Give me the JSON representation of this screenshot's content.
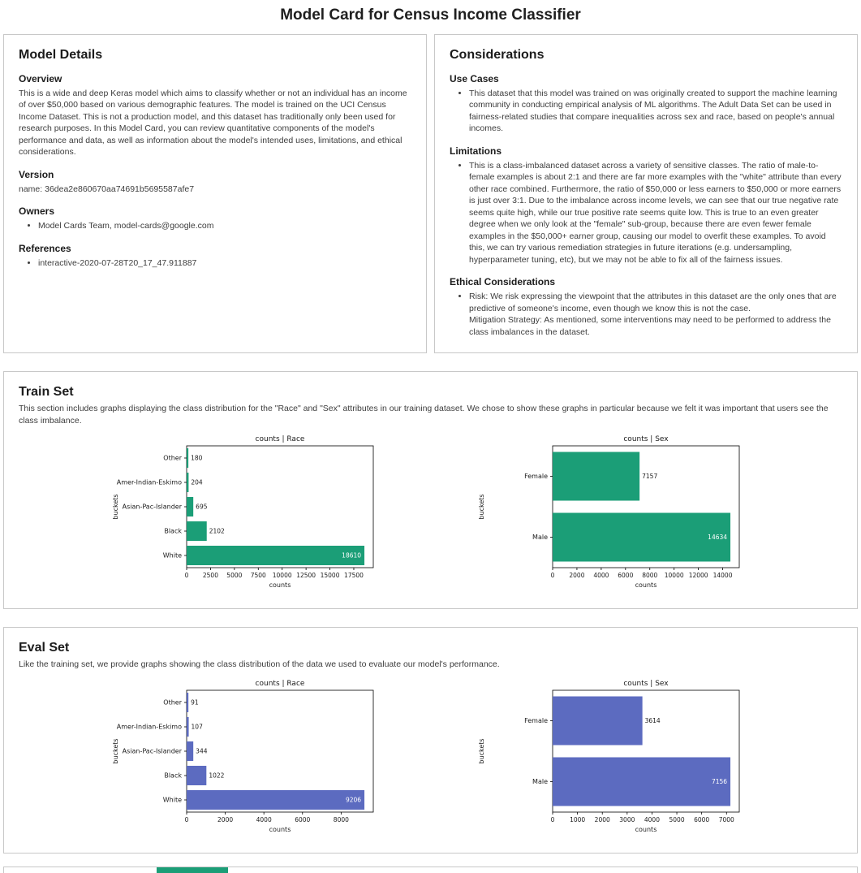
{
  "page": {
    "title": "Model Card for Census Income Classifier"
  },
  "model_details": {
    "title": "Model Details",
    "sections": {
      "overview": {
        "heading": "Overview",
        "body": "This is a wide and deep Keras model which aims to classify whether or not an individual has an income of over $50,000 based on various demographic features. The model is trained on the UCI Census Income Dataset. This is not a production model, and this dataset has traditionally only been used for research purposes. In this Model Card, you can review quantitative components of the model's performance and data, as well as information about the model's intended uses, limitations, and ethical considerations."
      },
      "version": {
        "heading": "Version",
        "body": "name: 36dea2e860670aa74691b5695587afe7"
      },
      "owners": {
        "heading": "Owners",
        "items": [
          "Model Cards Team, model-cards@google.com"
        ]
      },
      "references": {
        "heading": "References",
        "items": [
          "interactive-2020-07-28T20_17_47.911887"
        ]
      }
    }
  },
  "considerations": {
    "title": "Considerations",
    "use_cases": {
      "heading": "Use Cases",
      "items": [
        "This dataset that this model was trained on was originally created to support the machine learning community in conducting empirical analysis of ML algorithms. The Adult Data Set can be used in fairness-related studies that compare inequalities across sex and race, based on people's annual incomes."
      ]
    },
    "limitations": {
      "heading": "Limitations",
      "items": [
        "This is a class-imbalanced dataset across a variety of sensitive classes. The ratio of male-to-female examples is about 2:1 and there are far more examples with the \"white\" attribute than every other race combined. Furthermore, the ratio of $50,000 or less earners to $50,000 or more earners is just over 3:1. Due to the imbalance across income levels, we can see that our true negative rate seems quite high, while our true positive rate seems quite low. This is true to an even greater degree when we only look at the \"female\" sub-group, because there are even fewer female examples in the $50,000+ earner group, causing our model to overfit these examples. To avoid this, we can try various remediation strategies in future iterations (e.g. undersampling, hyperparameter tuning, etc), but we may not be able to fix all of the fairness issues."
      ]
    },
    "ethical": {
      "heading": "Ethical Considerations",
      "items": [
        "Risk: We risk expressing the viewpoint that the attributes in this dataset are the only ones that are predictive of someone's income, even though we know this is not the case.\nMitigation Strategy: As mentioned, some interventions may need to be performed to address the class imbalances in the dataset."
      ]
    }
  },
  "train_set": {
    "title": "Train Set",
    "description": "This section includes graphs displaying the class distribution for the \"Race\" and \"Sex\" attributes in our training dataset. We chose to show these graphs in particular because we felt it was important that users see the class imbalance."
  },
  "eval_set": {
    "title": "Eval Set",
    "description": "Like the training set, we provide graphs showing the class distribution of the data we used to evaluate our model's performance."
  },
  "chart_data": [
    {
      "id": "train-race",
      "type": "bar",
      "orientation": "horizontal",
      "title": "counts | Race",
      "xlabel": "counts",
      "ylabel": "buckets",
      "categories": [
        "Other",
        "Amer-Indian-Eskimo",
        "Asian-Pac-Islander",
        "Black",
        "White"
      ],
      "values": [
        180,
        204,
        695,
        2102,
        18610
      ],
      "xlim": [
        0,
        19541
      ],
      "xticks": [
        0,
        2500,
        5000,
        7500,
        10000,
        12500,
        15000,
        17500
      ],
      "color": "#1b9e77",
      "grid": false,
      "legend": false
    },
    {
      "id": "train-sex",
      "type": "bar",
      "orientation": "horizontal",
      "title": "counts | Sex",
      "xlabel": "counts",
      "ylabel": "buckets",
      "categories": [
        "Female",
        "Male"
      ],
      "values": [
        7157,
        14634
      ],
      "xlim": [
        0,
        15366
      ],
      "xticks": [
        0,
        2000,
        4000,
        6000,
        8000,
        10000,
        12000,
        14000
      ],
      "color": "#1b9e77",
      "grid": false,
      "legend": false
    },
    {
      "id": "eval-race",
      "type": "bar",
      "orientation": "horizontal",
      "title": "counts | Race",
      "xlabel": "counts",
      "ylabel": "buckets",
      "categories": [
        "Other",
        "Amer-Indian-Eskimo",
        "Asian-Pac-Islander",
        "Black",
        "White"
      ],
      "values": [
        91,
        107,
        344,
        1022,
        9206
      ],
      "xlim": [
        0,
        9666
      ],
      "xticks": [
        0,
        2000,
        4000,
        6000,
        8000
      ],
      "color": "#5c6bc0",
      "grid": false,
      "legend": false
    },
    {
      "id": "eval-sex",
      "type": "bar",
      "orientation": "horizontal",
      "title": "counts | Sex",
      "xlabel": "counts",
      "ylabel": "buckets",
      "categories": [
        "Female",
        "Male"
      ],
      "values": [
        3614,
        7156
      ],
      "xlim": [
        0,
        7514
      ],
      "xticks": [
        0,
        1000,
        2000,
        3000,
        4000,
        5000,
        6000,
        7000
      ],
      "color": "#5c6bc0",
      "grid": false,
      "legend": false
    }
  ]
}
